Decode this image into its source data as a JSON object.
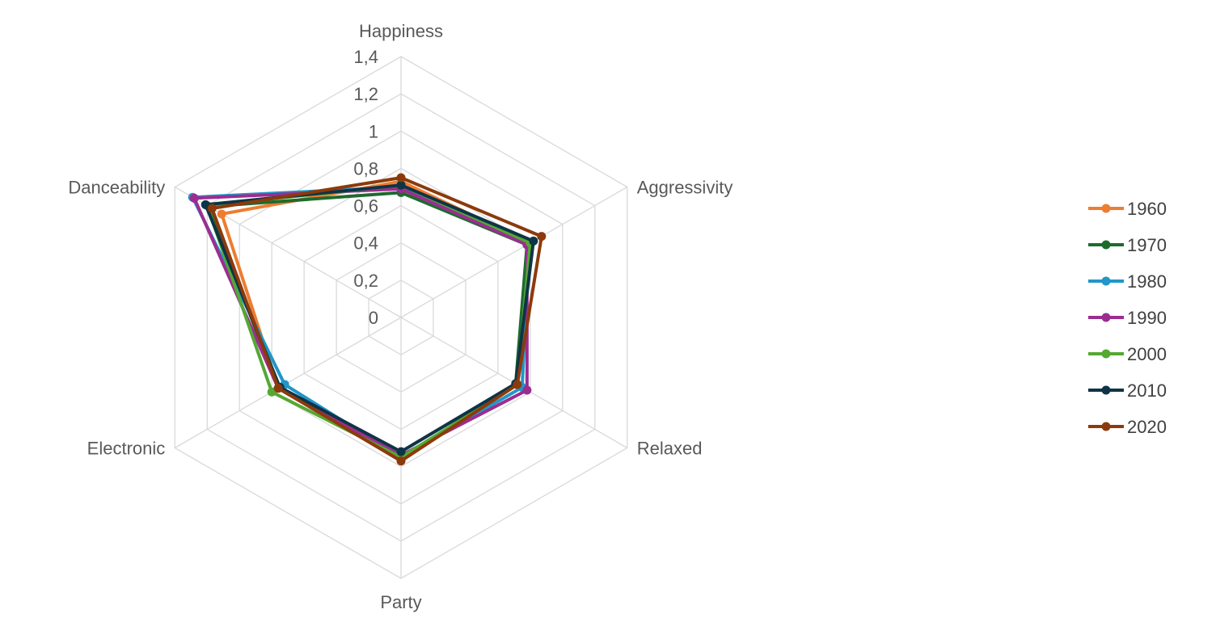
{
  "chart_data": {
    "type": "radar",
    "axes": [
      "Happiness",
      "Aggressivity",
      "Relaxed",
      "Party",
      "Electronic",
      "Danceability"
    ],
    "rlim": [
      0,
      1.4
    ],
    "ticks": [
      "0",
      "0,2",
      "0,4",
      "0,6",
      "0,8",
      "1",
      "1,2",
      "1,4"
    ],
    "tick_values": [
      0,
      0.2,
      0.4,
      0.6,
      0.8,
      1.0,
      1.2,
      1.4
    ],
    "legend_position": "right",
    "series": [
      {
        "name": "1960",
        "color": "#ED7D31",
        "values": [
          0.73,
          0.8,
          0.72,
          0.77,
          0.76,
          1.11
        ]
      },
      {
        "name": "1970",
        "color": "#1E6B2E",
        "values": [
          0.67,
          0.78,
          0.71,
          0.76,
          0.76,
          1.19
        ]
      },
      {
        "name": "1980",
        "color": "#2196C8",
        "values": [
          0.7,
          0.79,
          0.75,
          0.75,
          0.72,
          1.29
        ]
      },
      {
        "name": "1990",
        "color": "#9B2D91",
        "values": [
          0.69,
          0.78,
          0.78,
          0.74,
          0.76,
          1.28
        ]
      },
      {
        "name": "2000",
        "color": "#55A832",
        "values": [
          0.71,
          0.8,
          0.72,
          0.75,
          0.8,
          1.2
        ]
      },
      {
        "name": "2010",
        "color": "#0E3447",
        "values": [
          0.71,
          0.82,
          0.71,
          0.72,
          0.75,
          1.21
        ]
      },
      {
        "name": "2020",
        "color": "#8C3A0C",
        "values": [
          0.75,
          0.87,
          0.72,
          0.77,
          0.76,
          1.17
        ]
      }
    ]
  }
}
